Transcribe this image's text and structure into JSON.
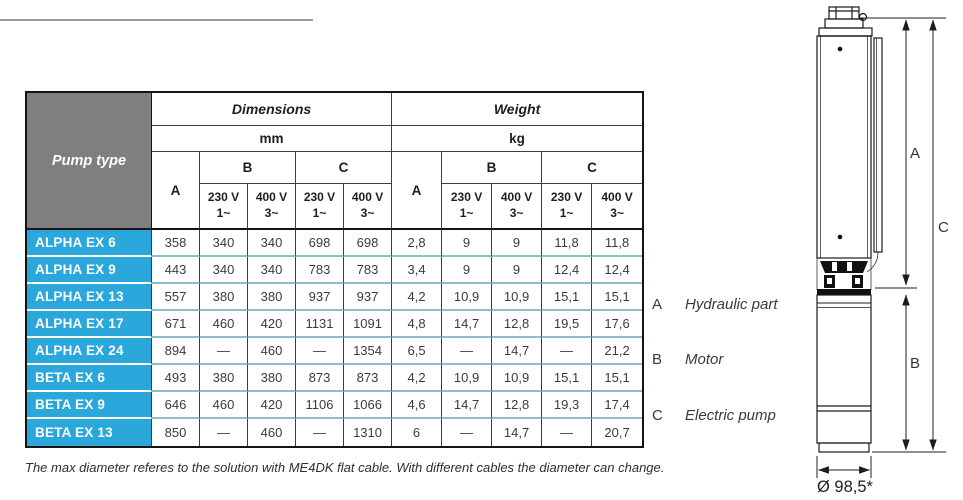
{
  "colors": {
    "accent_blue": "#2aa7db",
    "header_gray": "#7f7f7f",
    "row_divider": "#8fbdc9"
  },
  "table": {
    "header": {
      "pump_type": "Pump type",
      "dimensions": "Dimensions",
      "weight": "Weight",
      "mm": "mm",
      "kg": "kg",
      "col_a": "A",
      "col_b": "B",
      "col_c": "C",
      "v230_l1": "230 V",
      "v230_l2": "1~",
      "v400_l1": "400 V",
      "v400_l2": "3~"
    },
    "rows": [
      {
        "name": "ALPHA EX 6",
        "values": [
          "358",
          "340",
          "340",
          "698",
          "698",
          "2,8",
          "9",
          "9",
          "11,8",
          "11,8"
        ]
      },
      {
        "name": "ALPHA EX 9",
        "values": [
          "443",
          "340",
          "340",
          "783",
          "783",
          "3,4",
          "9",
          "9",
          "12,4",
          "12,4"
        ]
      },
      {
        "name": "ALPHA EX 13",
        "values": [
          "557",
          "380",
          "380",
          "937",
          "937",
          "4,2",
          "10,9",
          "10,9",
          "15,1",
          "15,1"
        ]
      },
      {
        "name": "ALPHA EX 17",
        "values": [
          "671",
          "460",
          "420",
          "1131",
          "1091",
          "4,8",
          "14,7",
          "12,8",
          "19,5",
          "17,6"
        ]
      },
      {
        "name": "ALPHA EX 24",
        "values": [
          "894",
          "—",
          "460",
          "—",
          "1354",
          "6,5",
          "—",
          "14,7",
          "—",
          "21,2"
        ]
      },
      {
        "name": "BETA EX 6",
        "values": [
          "493",
          "380",
          "380",
          "873",
          "873",
          "4,2",
          "10,9",
          "10,9",
          "15,1",
          "15,1"
        ]
      },
      {
        "name": "BETA EX 9",
        "values": [
          "646",
          "460",
          "420",
          "1106",
          "1066",
          "4,6",
          "14,7",
          "12,8",
          "19,3",
          "17,4"
        ]
      },
      {
        "name": "BETA EX 13",
        "values": [
          "850",
          "—",
          "460",
          "—",
          "1310",
          "6",
          "—",
          "14,7",
          "—",
          "20,7"
        ]
      }
    ]
  },
  "footnote": "The max diameter referes to the solution with ME4DK flat cable. With different cables the diameter can change.",
  "legend": {
    "items": [
      {
        "key": "A",
        "label": "Hydraulic part"
      },
      {
        "key": "B",
        "label": "Motor"
      },
      {
        "key": "C",
        "label": "Electric pump"
      }
    ]
  },
  "diagram": {
    "dim_a": "A",
    "dim_b": "B",
    "dim_c": "C",
    "diameter_label": "Ø 98,5*"
  }
}
